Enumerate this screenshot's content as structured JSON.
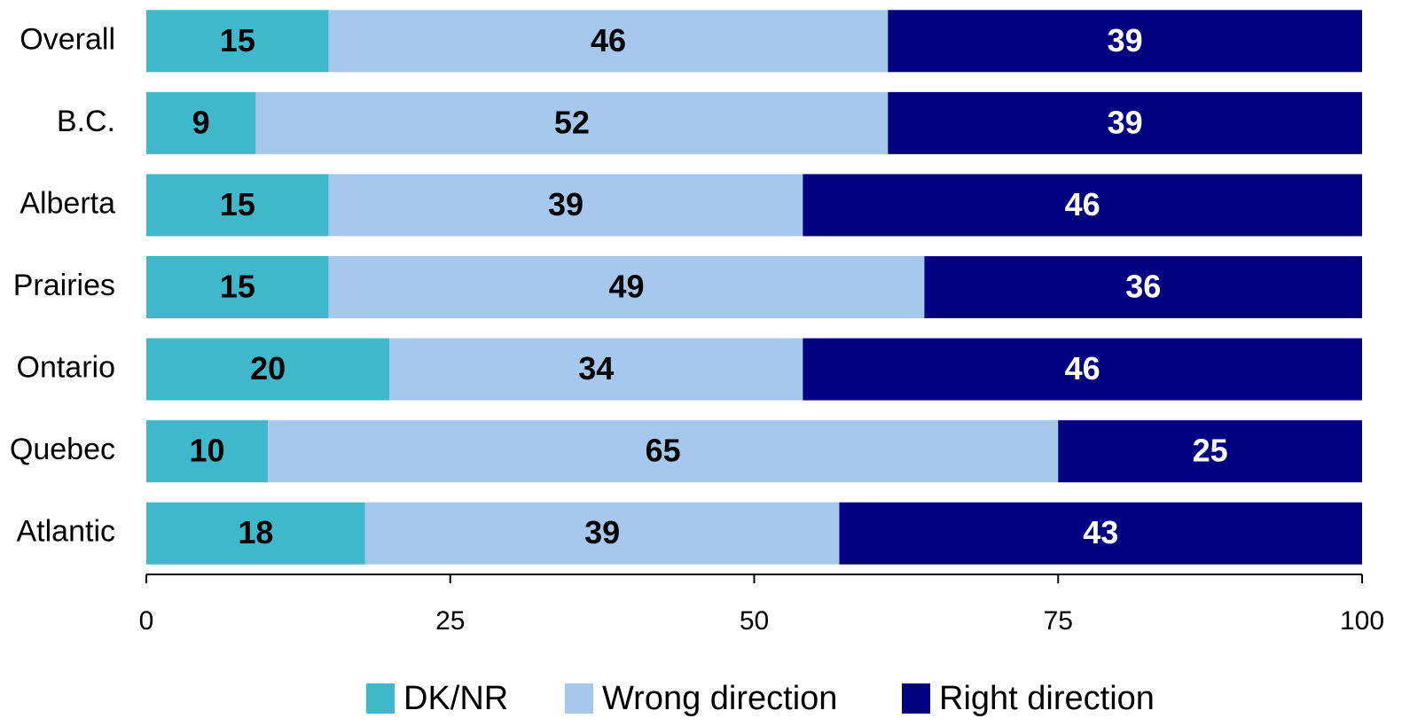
{
  "chart_data": {
    "type": "stacked_bar_horizontal",
    "categories": [
      "Overall",
      "B.C.",
      "Alberta",
      "Prairies",
      "Ontario",
      "Quebec",
      "Atlantic"
    ],
    "series": [
      {
        "name": "DK/NR",
        "color": "#40b8cc",
        "values": [
          15,
          9,
          15,
          15,
          20,
          10,
          18
        ]
      },
      {
        "name": "Wrong direction",
        "color": "#a6c8ee",
        "values": [
          46,
          52,
          39,
          49,
          34,
          65,
          39
        ]
      },
      {
        "name": "Right direction",
        "color": "#000080",
        "values": [
          39,
          39,
          46,
          36,
          46,
          25,
          43
        ]
      }
    ],
    "xlim": [
      0,
      100
    ],
    "xticks": [
      0,
      25,
      50,
      75,
      100
    ],
    "legend": "bottom"
  }
}
